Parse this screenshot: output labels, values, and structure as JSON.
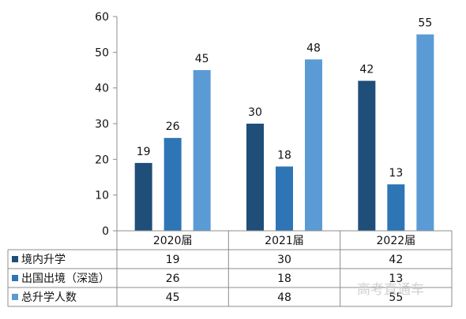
{
  "chart_data": {
    "type": "bar",
    "categories": [
      "2020届",
      "2021届",
      "2022届"
    ],
    "series": [
      {
        "name": "境内升学",
        "values": [
          19,
          30,
          42
        ],
        "color": "#1f4e79"
      },
      {
        "name": "出国出境（深造）",
        "values": [
          26,
          18,
          13
        ],
        "color": "#2e75b6"
      },
      {
        "name": "总升学人数",
        "values": [
          45,
          48,
          55
        ],
        "color": "#5b9bd5"
      }
    ],
    "ylim": [
      0,
      60
    ],
    "yticks": [
      0,
      10,
      20,
      30,
      40,
      50,
      60
    ],
    "legend": "data-table-below",
    "grid": false
  },
  "watermark": "高考直通车"
}
